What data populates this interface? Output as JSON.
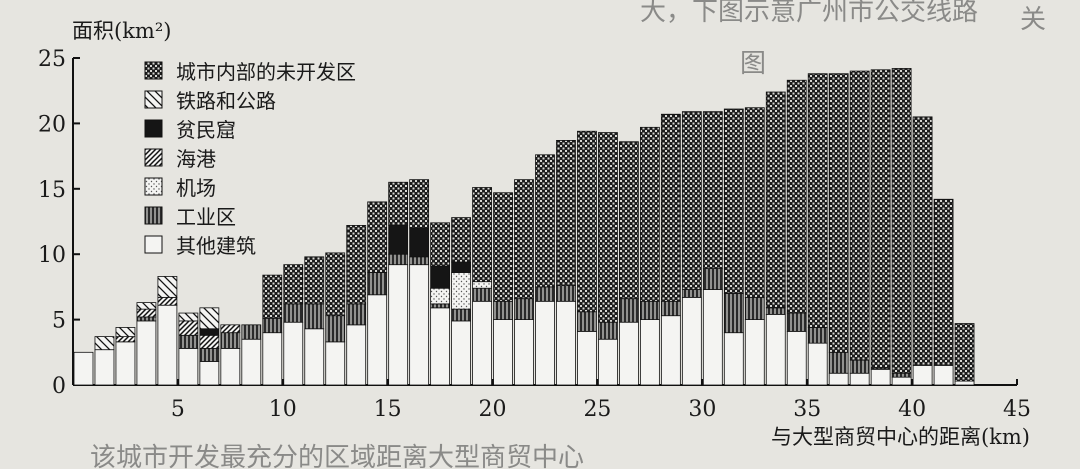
{
  "chart_data": {
    "type": "bar",
    "stacked": true,
    "ylabel": "面积(km²)",
    "xlabel": "与大型商贸中心的距离(km)",
    "xlim": [
      0,
      45
    ],
    "ylim": [
      0,
      25
    ],
    "x_ticks": [
      5,
      10,
      15,
      20,
      25,
      30,
      35,
      40,
      45
    ],
    "y_ticks": [
      0,
      5,
      10,
      15,
      20,
      25
    ],
    "legend_position": "top-left",
    "grid": false,
    "categories": [
      "1",
      "2",
      "3",
      "4",
      "5",
      "6",
      "7",
      "8",
      "9",
      "10",
      "11",
      "12",
      "13",
      "14",
      "15",
      "16",
      "17",
      "18",
      "19",
      "20",
      "21",
      "22",
      "23",
      "24",
      "25",
      "26",
      "27",
      "28",
      "29",
      "30",
      "31",
      "32",
      "33",
      "34",
      "35",
      "36",
      "37",
      "38",
      "39",
      "40",
      "41",
      "42",
      "43"
    ],
    "series": [
      {
        "name": "其他建筑",
        "pattern": "white",
        "values": [
          2.5,
          2.7,
          3.3,
          4.9,
          6.1,
          2.8,
          1.8,
          2.8,
          3.5,
          4.0,
          4.8,
          4.3,
          3.3,
          4.6,
          6.9,
          9.2,
          9.2,
          5.9,
          4.9,
          6.4,
          5.0,
          5.0,
          6.4,
          6.4,
          4.1,
          3.5,
          4.8,
          5.0,
          5.3,
          6.7,
          7.3,
          4.0,
          5.0,
          5.4,
          4.1,
          3.2,
          0.9,
          0.9,
          1.2,
          0.6,
          1.5,
          1.5,
          0.3
        ]
      },
      {
        "name": "工业区",
        "pattern": "vertical",
        "values": [
          0,
          0,
          0,
          0.3,
          0,
          1.0,
          1.0,
          1.2,
          1.1,
          1.1,
          1.4,
          1.9,
          2.0,
          1.6,
          1.7,
          0.8,
          0.6,
          0.3,
          0.9,
          1.0,
          1.4,
          1.6,
          1.1,
          1.2,
          1.5,
          1.3,
          1.8,
          1.4,
          1.1,
          0.6,
          1.6,
          3.0,
          1.7,
          0.5,
          1.4,
          1.2,
          1.6,
          1.0,
          0.1,
          0.3,
          0,
          0,
          0
        ]
      },
      {
        "name": "机场",
        "pattern": "dots",
        "values": [
          0,
          0,
          0,
          0,
          0,
          0,
          0,
          0,
          0,
          0,
          0,
          0,
          0,
          0,
          0,
          0,
          0,
          1.2,
          2.8,
          0.5,
          0,
          0,
          0,
          0,
          0,
          0,
          0,
          0,
          0,
          0,
          0,
          0,
          0,
          0,
          0,
          0,
          0,
          0,
          0,
          0,
          0,
          0,
          0
        ]
      },
      {
        "name": "海港",
        "pattern": "diag-dense",
        "values": [
          0,
          0,
          0.4,
          0.6,
          0.6,
          1.1,
          1.0,
          0.6,
          0,
          0,
          0,
          0,
          0,
          0,
          0,
          0,
          0,
          0,
          0,
          0,
          0,
          0,
          0,
          0,
          0,
          0,
          0,
          0,
          0,
          0,
          0,
          0,
          0,
          0,
          0,
          0,
          0,
          0,
          0,
          0,
          0,
          0,
          0
        ]
      },
      {
        "name": "贫民窟",
        "pattern": "black",
        "values": [
          0,
          0,
          0,
          0,
          0,
          0,
          0.5,
          0,
          0,
          0,
          0,
          0,
          0,
          0,
          0,
          2.2,
          2.2,
          1.7,
          0.8,
          0,
          0,
          0,
          0,
          0,
          0,
          0,
          0,
          0,
          0,
          0,
          0,
          0,
          0,
          0,
          0,
          0,
          0,
          0,
          0,
          0,
          0,
          0,
          0
        ]
      },
      {
        "name": "铁路和公路",
        "pattern": "diag",
        "values": [
          0,
          1.0,
          0.7,
          0.5,
          1.6,
          0.6,
          1.6,
          0,
          0,
          0,
          0,
          0,
          0,
          0,
          0,
          0,
          0,
          0,
          0,
          0,
          0,
          0,
          0,
          0,
          0,
          0,
          0,
          0,
          0,
          0,
          0,
          0,
          0,
          0,
          0,
          0,
          0,
          0,
          0,
          0,
          0,
          0,
          0
        ]
      },
      {
        "name": "城市内部的未开发区",
        "pattern": "check",
        "values": [
          0,
          0,
          0,
          0,
          0,
          0,
          0,
          0,
          0,
          3.3,
          3.0,
          3.6,
          4.8,
          6.0,
          5.4,
          3.3,
          3.7,
          3.3,
          3.4,
          7.2,
          8.3,
          9.1,
          10.1,
          11.1,
          13.8,
          14.5,
          12.0,
          13.3,
          14.3,
          13.6,
          12.0,
          14.1,
          14.5,
          16.5,
          17.8,
          19.4,
          21.3,
          22.1,
          22.8,
          23.3,
          19.0,
          12.7,
          4.4
        ]
      }
    ]
  }
}
